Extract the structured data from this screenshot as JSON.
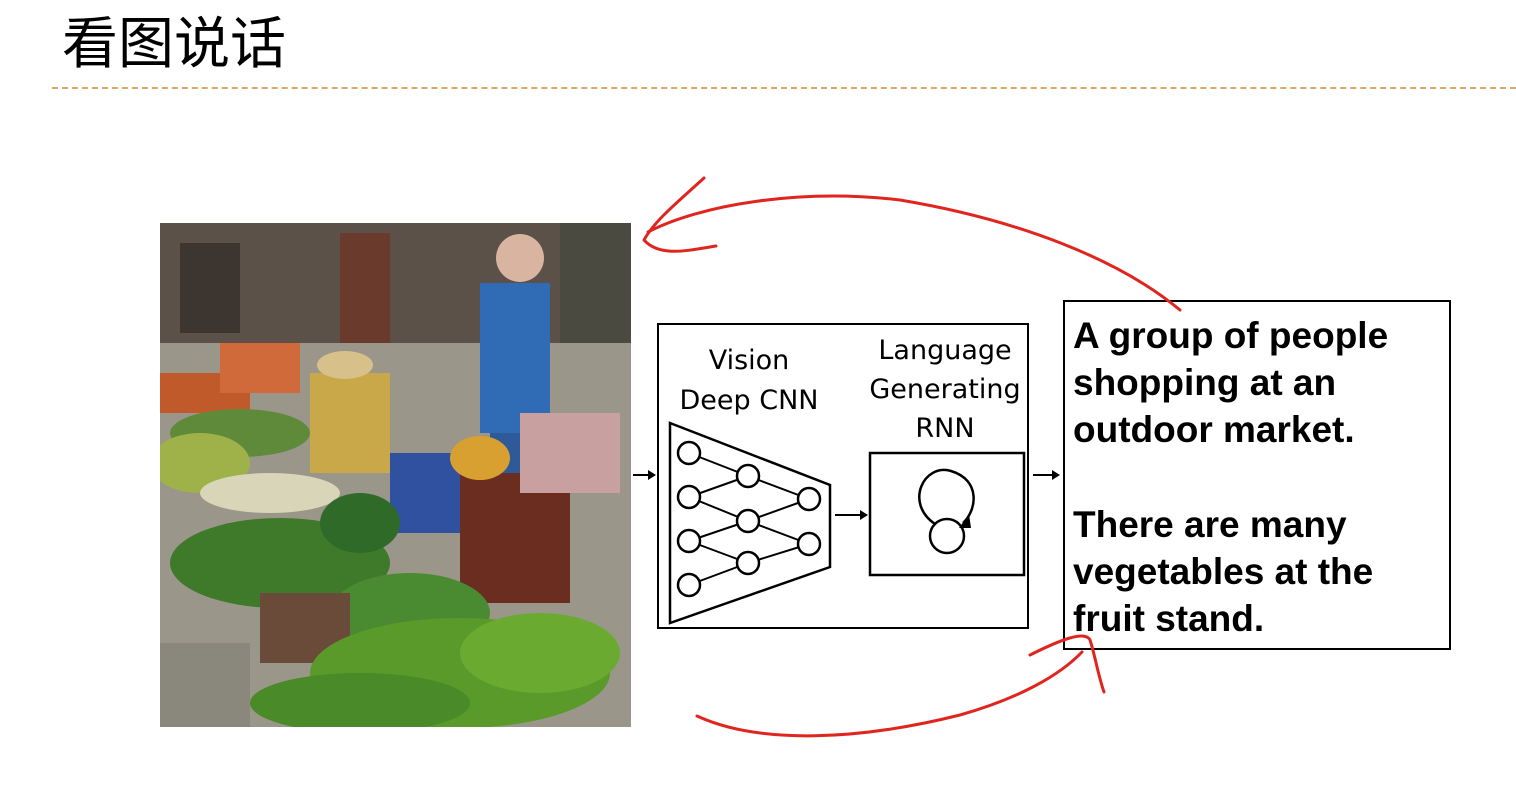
{
  "slide": {
    "title": "看图说话"
  },
  "diagram": {
    "vision_label": "Vision\nDeep CNN",
    "rnn_label": "Language\nGenerating\nRNN"
  },
  "captions": [
    "A group of people\nshopping at an\noutdoor market.",
    "There are many\nvegetables at the\nfruit stand."
  ],
  "colors": {
    "annotation": "#e0251f",
    "divider": "#d9a86a"
  }
}
